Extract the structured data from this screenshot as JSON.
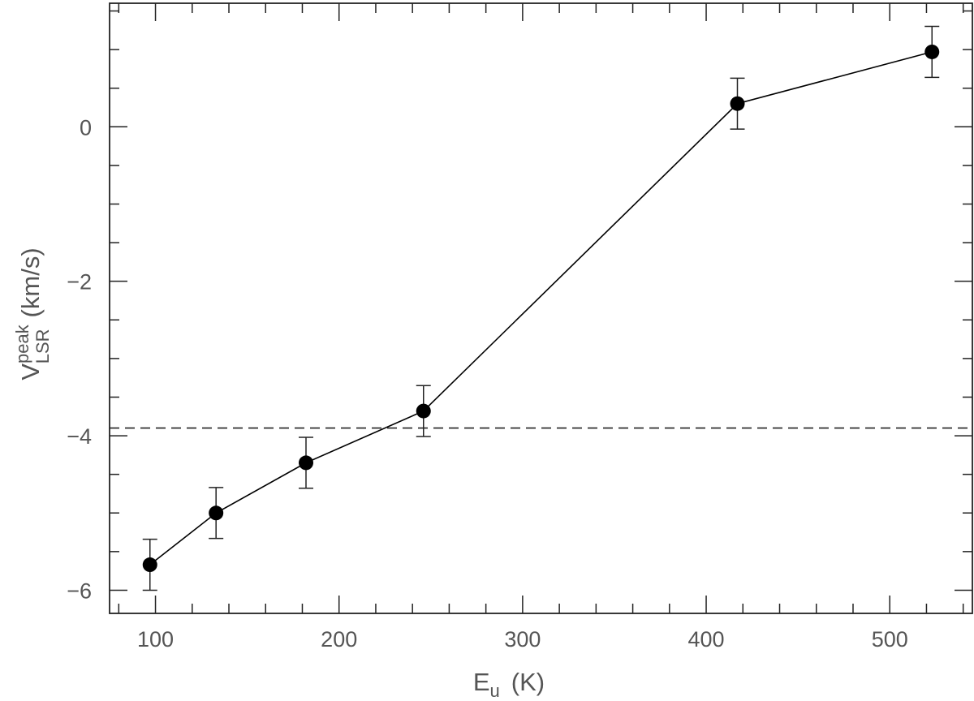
{
  "chart_data": {
    "type": "scatter",
    "xlabel_main": "E",
    "xlabel_sub": "u",
    "xlabel_unit": "(K)",
    "ylabel_main": "V",
    "ylabel_sup": "peak",
    "ylabel_sub": "LSR",
    "ylabel_unit": "(km/s)",
    "xlim": [
      75,
      545
    ],
    "ylim": [
      -6.3,
      1.6
    ],
    "x_ticks": [
      100,
      200,
      300,
      400,
      500
    ],
    "y_ticks": [
      -6,
      -4,
      -2,
      0
    ],
    "x_minor_step": 20,
    "y_minor_step": 0.5,
    "grid": false,
    "series": [
      {
        "x": [
          97,
          133,
          182,
          246,
          417,
          523
        ],
        "y": [
          -5.67,
          -5.0,
          -4.35,
          -3.68,
          0.3,
          0.97
        ],
        "yerr": [
          0.33,
          0.33,
          0.33,
          0.33,
          0.33,
          0.33
        ],
        "connected": true,
        "color": "#000000"
      }
    ],
    "reference_line": {
      "y": -3.9,
      "style": "dashed"
    }
  }
}
